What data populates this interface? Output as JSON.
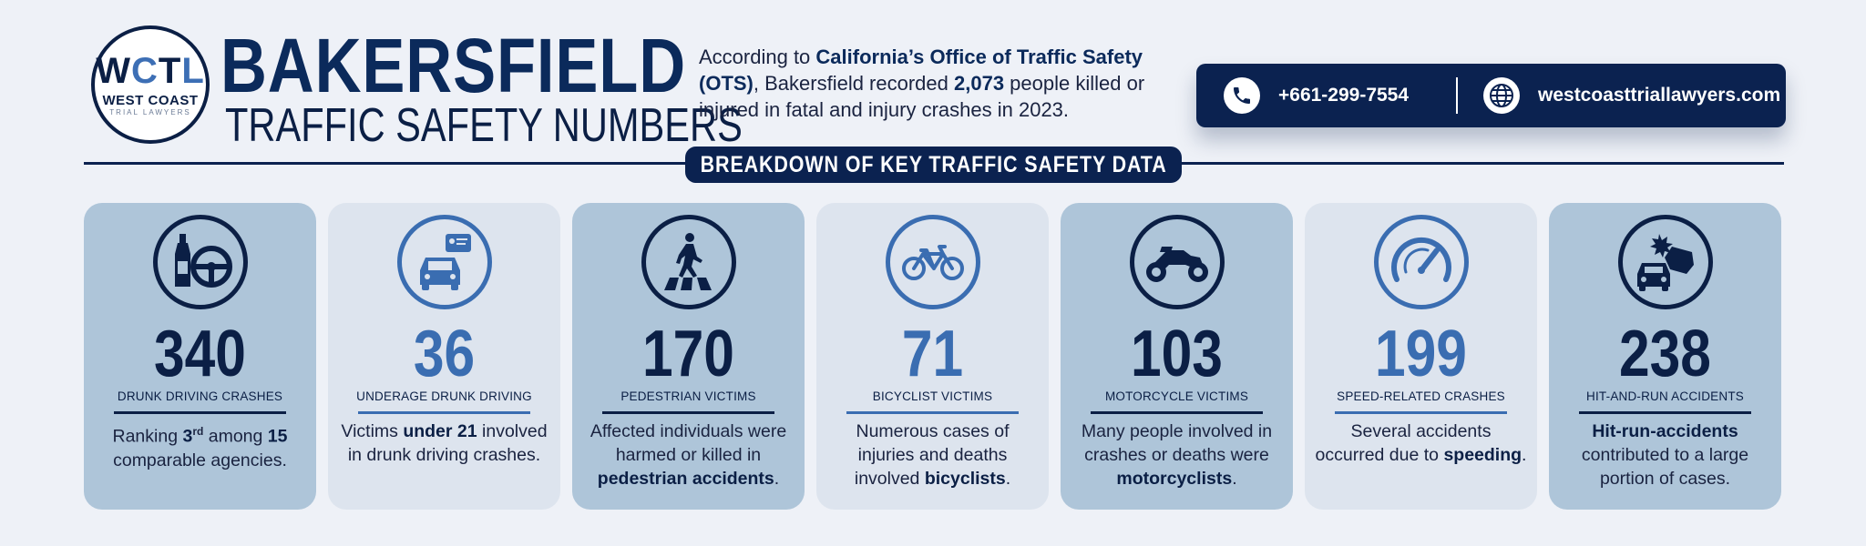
{
  "header": {
    "logo": {
      "mark": "WCTL",
      "name": "WEST COAST",
      "sub": "TRIAL LAWYERS"
    },
    "title": "BAKERSFIELD",
    "subtitle": "TRAFFIC SAFETY NUMBERS"
  },
  "intro": {
    "p1": "According to ",
    "b1": "California’s Office of Traffic Safety (OTS)",
    "p2": ", Bakersfield recorded ",
    "b2": "2,073",
    "p3": " people killed or injured in fatal and injury crashes in 2023."
  },
  "contact": {
    "phone": "+661-299-7554",
    "website": "westcoasttriallawyers.com",
    "phone_icon": "phone-icon",
    "web_icon": "globe-icon"
  },
  "banner": "BREAKDOWN OF KEY TRAFFIC SAFETY DATA",
  "colors": {
    "navy": "#0b1f45",
    "blue": "#3a6db1",
    "card_dark": "#aec5d9",
    "card_light": "#dde4ee",
    "background": "#eef1f7"
  },
  "cards": [
    {
      "icon": "drunk-driving-icon",
      "value": "340",
      "label": "DRUNK DRIVING CRASHES",
      "d1": "Ranking ",
      "d1b": "3",
      "d1sup": "rd",
      "d2": " among ",
      "d2b": "15",
      "d3": " comparable agencies."
    },
    {
      "icon": "underage-driver-icon",
      "value": "36",
      "label": "UNDERAGE DRUNK DRIVING",
      "d1": "Victims ",
      "d1b": "under 21",
      "d2": " involved in drunk driving crashes."
    },
    {
      "icon": "pedestrian-crossing-icon",
      "value": "170",
      "label": "PEDESTRIAN VICTIMS",
      "d1": "Affected individuals were harmed or killed in ",
      "d1b": "pedestrian accidents",
      "d2": "."
    },
    {
      "icon": "bicycle-icon",
      "value": "71",
      "label": "BICYCLIST VICTIMS",
      "d1": "Numerous cases of injuries and deaths involved ",
      "d1b": "bicyclists",
      "d2": "."
    },
    {
      "icon": "motorcycle-icon",
      "value": "103",
      "label": "MOTORCYCLE VICTIMS",
      "d1": "Many people involved in crashes or deaths were ",
      "d1b": "motorcyclists",
      "d2": "."
    },
    {
      "icon": "speedometer-icon",
      "value": "199",
      "label": "SPEED-RELATED CRASHES",
      "d1": "Several accidents occurred due to ",
      "d1b": "speeding",
      "d2": "."
    },
    {
      "icon": "car-collision-icon",
      "value": "238",
      "label": "HIT-AND-RUN ACCIDENTS",
      "d1b": "Hit-run-accidents",
      "d2": " contributed to a large portion of cases."
    }
  ]
}
